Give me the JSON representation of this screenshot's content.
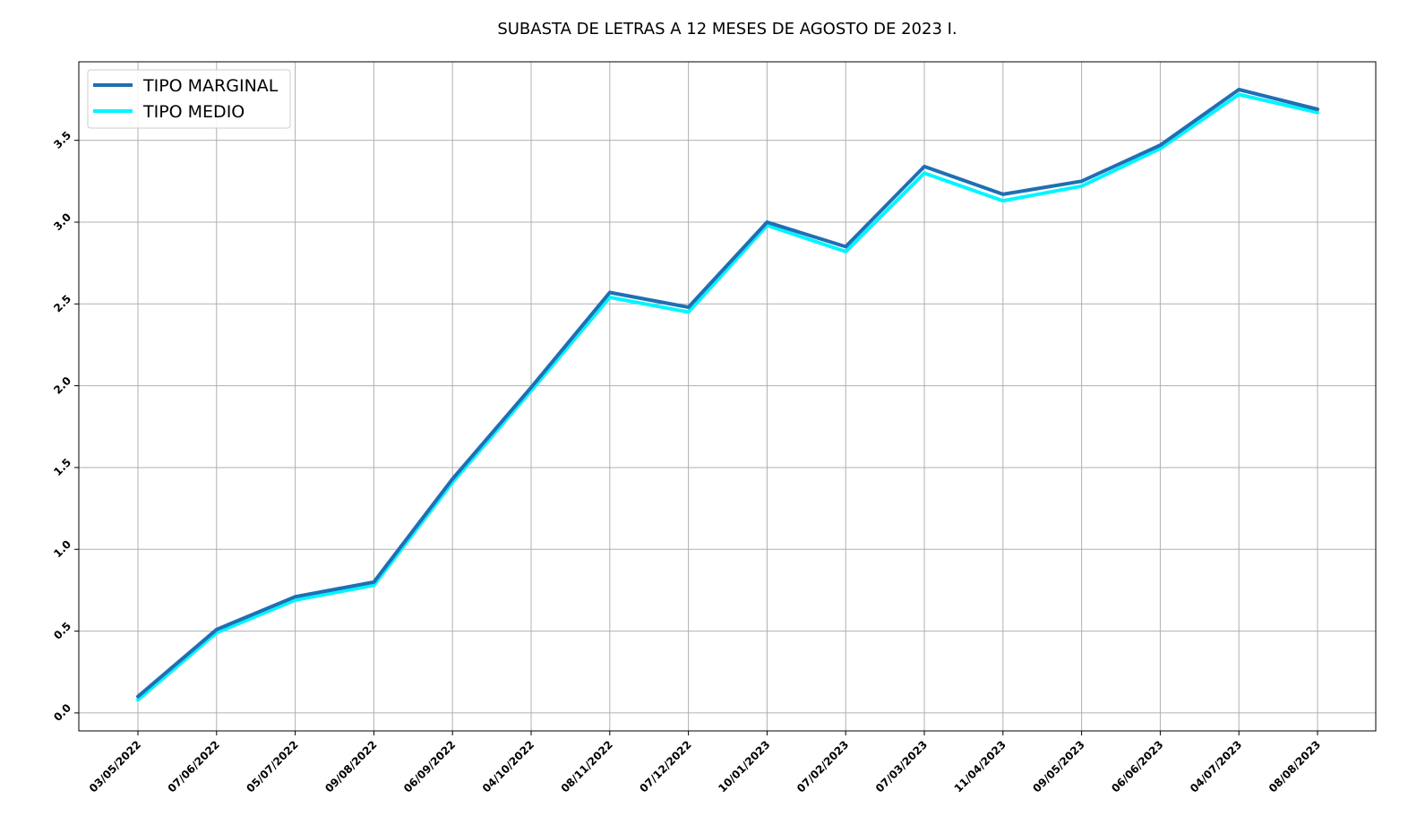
{
  "chart_data": {
    "type": "line",
    "title": "SUBASTA DE LETRAS A 12 MESES DE AGOSTO DE 2023 I.",
    "xlabel": "",
    "ylabel": "",
    "categories": [
      "03/05/2022",
      "07/06/2022",
      "05/07/2022",
      "09/08/2022",
      "06/09/2022",
      "04/10/2022",
      "08/11/2022",
      "07/12/2022",
      "10/01/2023",
      "07/02/2023",
      "07/03/2023",
      "11/04/2023",
      "09/05/2023",
      "06/06/2023",
      "04/07/2023",
      "08/08/2023"
    ],
    "series": [
      {
        "name": "TIPO MARGINAL",
        "color": "#1f6fb4",
        "values": [
          0.1,
          0.51,
          0.71,
          0.8,
          1.43,
          1.99,
          2.57,
          2.48,
          3.0,
          2.85,
          3.34,
          3.17,
          3.25,
          3.47,
          3.81,
          3.69
        ]
      },
      {
        "name": "TIPO MEDIO",
        "color": "#00f5ff",
        "values": [
          0.08,
          0.49,
          0.69,
          0.78,
          1.41,
          1.97,
          2.54,
          2.45,
          2.98,
          2.82,
          3.3,
          3.13,
          3.22,
          3.45,
          3.78,
          3.67
        ]
      }
    ],
    "ylim": [
      -0.11,
      3.98
    ],
    "yticks": [
      "0.0",
      "0.5",
      "1.0",
      "1.5",
      "2.0",
      "2.5",
      "3.0",
      "3.5"
    ],
    "grid": true,
    "legend_position": "top-left"
  }
}
